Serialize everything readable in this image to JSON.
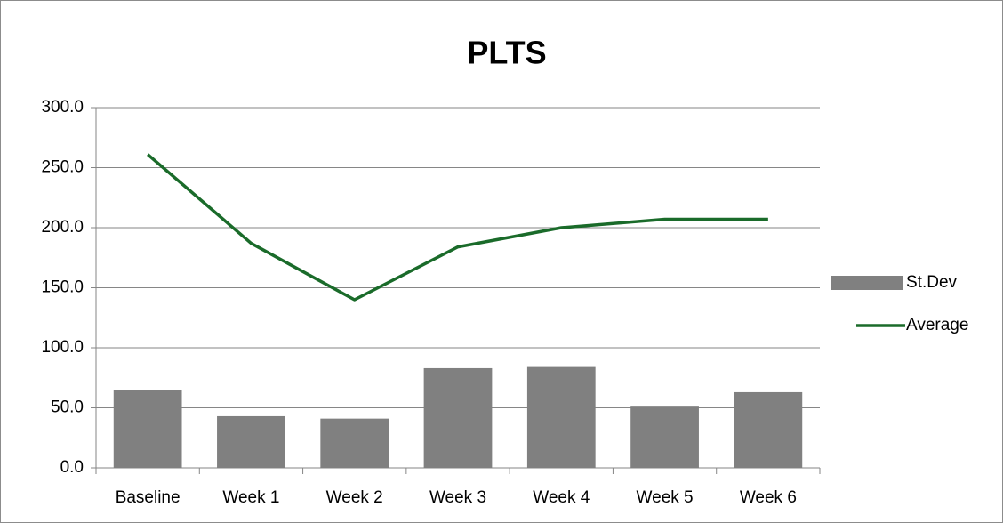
{
  "chart_data": {
    "type": "bar-line",
    "title": "PLTS",
    "categories": [
      "Baseline",
      "Week 1",
      "Week 2",
      "Week 3",
      "Week 4",
      "Week 5",
      "Week 6"
    ],
    "series": [
      {
        "name": "St.Dev",
        "type": "bar",
        "color": "#808080",
        "values": [
          65,
          43,
          41,
          83,
          84,
          51,
          63
        ]
      },
      {
        "name": "Average",
        "type": "line",
        "color": "#1a6b2a",
        "values": [
          261,
          187,
          140,
          184,
          200,
          207,
          207
        ]
      }
    ],
    "ylim": [
      0,
      300
    ],
    "yticks": [
      {
        "value": 0,
        "label": "0.0"
      },
      {
        "value": 50,
        "label": "50.0"
      },
      {
        "value": 100,
        "label": "100.0"
      },
      {
        "value": 150,
        "label": "150.0"
      },
      {
        "value": 200,
        "label": "200.0"
      },
      {
        "value": 250,
        "label": "250.0"
      },
      {
        "value": 300,
        "label": "300.0"
      }
    ],
    "grid": true,
    "legend": "right"
  }
}
